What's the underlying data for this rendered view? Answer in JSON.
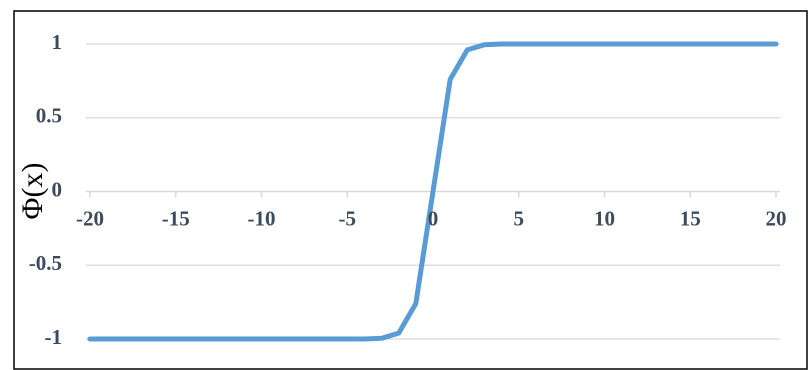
{
  "chart_data": {
    "type": "line",
    "title": "",
    "xlabel": "",
    "ylabel": "Φ(x)",
    "xlim": [
      -20,
      20
    ],
    "ylim": [
      -1,
      1
    ],
    "grid": true,
    "legend": "none",
    "x_ticks": [
      -20,
      -15,
      -10,
      -5,
      0,
      5,
      10,
      15,
      20
    ],
    "x_tick_labels": [
      "-20",
      "-15",
      "-10",
      "-5",
      "0",
      "5",
      "10",
      "15",
      "20"
    ],
    "y_ticks": [
      1,
      0.5,
      0,
      -0.5,
      -1
    ],
    "y_tick_labels": [
      "1",
      "0.5",
      "0",
      "-0.5",
      "-1"
    ],
    "series": [
      {
        "color": "#5b9bd5",
        "x": [
          -20,
          -19,
          -18,
          -17,
          -16,
          -15,
          -14,
          -13,
          -12,
          -11,
          -10,
          -9,
          -8,
          -7,
          -6,
          -5,
          -4,
          -3,
          -2,
          -1,
          0,
          1,
          2,
          3,
          4,
          5,
          6,
          7,
          8,
          9,
          10,
          11,
          12,
          13,
          14,
          15,
          16,
          17,
          18,
          19,
          20
        ],
        "y": [
          -1,
          -1,
          -1,
          -1,
          -1,
          -1,
          -1,
          -1,
          -1,
          -1,
          -1,
          -1,
          -1,
          -1,
          -1,
          -1,
          -1,
          -0.995,
          -0.96,
          -0.76,
          0,
          0.76,
          0.96,
          0.995,
          1,
          1,
          1,
          1,
          1,
          1,
          1,
          1,
          1,
          1,
          1,
          1,
          1,
          1,
          1,
          1,
          1
        ]
      }
    ]
  },
  "colors": {
    "axis": "#d9d9d9",
    "frame": "#000000",
    "tick_text": "#3b4a5c"
  }
}
